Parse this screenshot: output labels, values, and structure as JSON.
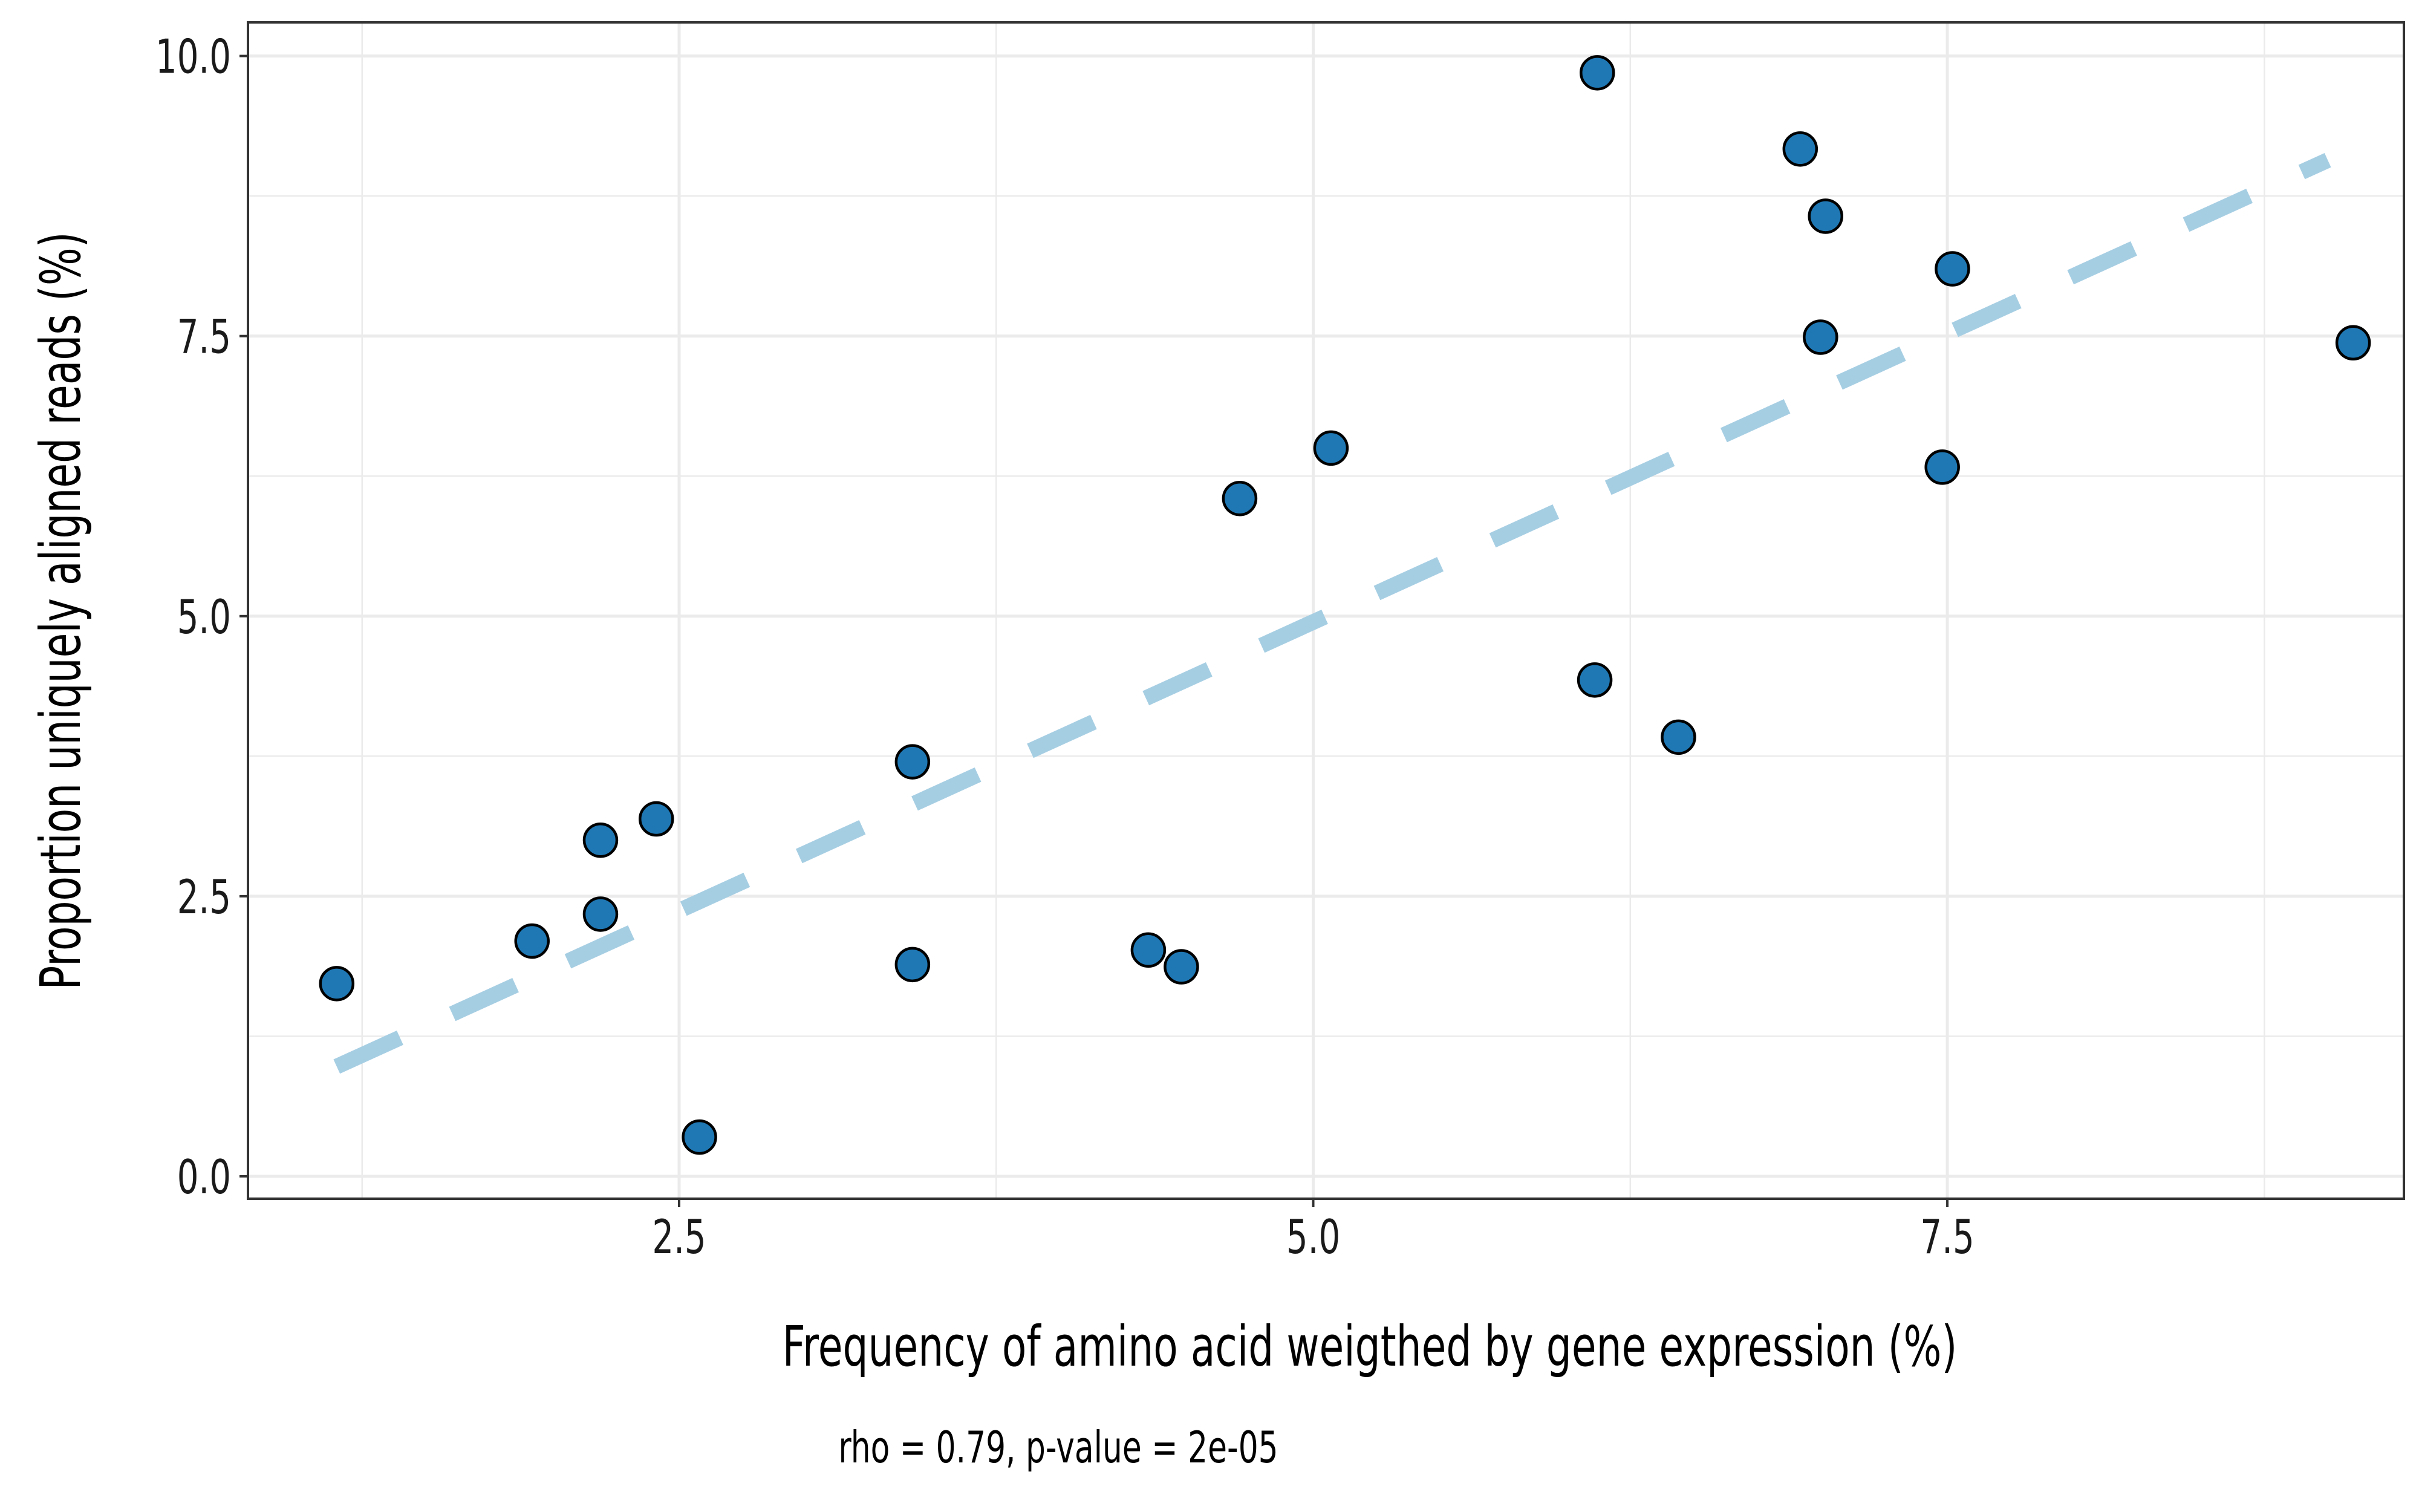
{
  "chart_data": {
    "type": "scatter",
    "xlabel": "Frequency of amino acid weigthed by gene expression (%)",
    "ylabel": "Proportion uniquely aligned reads (%)",
    "caption": "rho = 0.79, p-value = 2e-05",
    "xlim": [
      0.8,
      9.3
    ],
    "ylim": [
      -0.2,
      10.3
    ],
    "x_ticks": [
      2.5,
      5.0,
      7.5
    ],
    "x_tick_labels": [
      "2.5",
      "5.0",
      "7.5"
    ],
    "y_ticks": [
      0.0,
      2.5,
      5.0,
      7.5,
      10.0
    ],
    "y_tick_labels": [
      "0.0",
      "2.5",
      "5.0",
      "7.5",
      "10.0"
    ],
    "grid": true,
    "legend": "none",
    "series": [
      {
        "points": [
          {
            "x": 1.15,
            "y": 1.72
          },
          {
            "x": 1.92,
            "y": 2.1
          },
          {
            "x": 2.19,
            "y": 3.0
          },
          {
            "x": 2.19,
            "y": 2.34
          },
          {
            "x": 2.41,
            "y": 3.19
          },
          {
            "x": 2.58,
            "y": 0.35
          },
          {
            "x": 3.42,
            "y": 3.7
          },
          {
            "x": 3.42,
            "y": 1.89
          },
          {
            "x": 4.35,
            "y": 2.02
          },
          {
            "x": 4.48,
            "y": 1.87
          },
          {
            "x": 4.71,
            "y": 6.05
          },
          {
            "x": 5.07,
            "y": 6.5
          },
          {
            "x": 6.11,
            "y": 4.43
          },
          {
            "x": 6.44,
            "y": 3.92
          },
          {
            "x": 6.12,
            "y": 9.85
          },
          {
            "x": 6.92,
            "y": 9.17
          },
          {
            "x": 7.02,
            "y": 8.57
          },
          {
            "x": 7.0,
            "y": 7.49
          },
          {
            "x": 7.48,
            "y": 6.33
          },
          {
            "x": 7.52,
            "y": 8.1
          },
          {
            "x": 9.1,
            "y": 7.44
          }
        ]
      }
    ],
    "trend_line": {
      "x": [
        1.15,
        9.0
      ],
      "y": [
        0.98,
        9.07
      ],
      "style": "dashed"
    },
    "colors": {
      "point_fill": "#1f78b4",
      "point_stroke": "#000000",
      "trend_line": "#a6cee3",
      "grid": "#ebebeb",
      "panel_border": "#333333"
    }
  }
}
